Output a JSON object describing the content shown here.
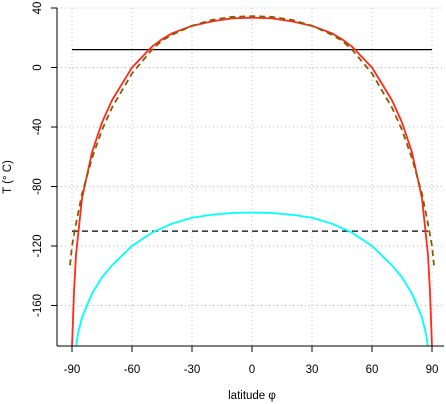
{
  "chart_data": {
    "type": "line",
    "xlabel": "latitude φ",
    "ylabel": "T (° C)",
    "xlim": [
      -90,
      90
    ],
    "ylim": [
      -188,
      40
    ],
    "x_ticks": [
      -90,
      -60,
      -30,
      0,
      30,
      60,
      90
    ],
    "y_ticks": [
      40,
      0,
      -40,
      -80,
      -120,
      -160
    ],
    "grid": true,
    "legend": "none",
    "series": [
      {
        "style": "solid",
        "color": "#000000",
        "x": [
          -90,
          90
        ],
        "y": [
          12,
          12
        ]
      },
      {
        "style": "dashed",
        "color": "#000000",
        "x": [
          -90,
          90
        ],
        "y": [
          -110,
          -110
        ]
      },
      {
        "style": "solid",
        "color": "#ff2a1a",
        "x": [
          -90,
          -89,
          -88,
          -85,
          -80,
          -75,
          -70,
          -60,
          -50,
          -45,
          -40,
          -30,
          -20,
          -10,
          0,
          10,
          20,
          30,
          40,
          45,
          50,
          60,
          70,
          75,
          80,
          85,
          88,
          89,
          90
        ],
        "y": [
          -188,
          -151,
          -126,
          -88,
          -57,
          -37,
          -22,
          0,
          14,
          19,
          23,
          28,
          31,
          33,
          33.5,
          33,
          31,
          28,
          23,
          19,
          14,
          0,
          -22,
          -37,
          -57,
          -88,
          -126,
          -151,
          -188
        ]
      },
      {
        "style": "dashed",
        "color": "#8c5a00",
        "x": [
          -91,
          -90,
          -88,
          -85,
          -80,
          -75,
          -70,
          -60,
          -50,
          -45,
          -40,
          -30,
          -20,
          -10,
          0,
          10,
          20,
          30,
          40,
          45,
          50,
          60,
          70,
          75,
          80,
          85,
          88,
          90,
          91
        ],
        "y": [
          -133,
          -120,
          -105,
          -85,
          -61,
          -42,
          -27,
          -4,
          12,
          18,
          22,
          28,
          32,
          34,
          34.5,
          34,
          32,
          28,
          22,
          18,
          12,
          -4,
          -27,
          -42,
          -61,
          -85,
          -105,
          -120,
          -133
        ]
      },
      {
        "style": "solid",
        "color": "#00ffff",
        "x": [
          -88,
          -87,
          -85,
          -80,
          -75,
          -70,
          -60,
          -50,
          -40,
          -30,
          -20,
          -10,
          0,
          10,
          20,
          30,
          40,
          50,
          60,
          70,
          75,
          80,
          85,
          87,
          88
        ],
        "y": [
          -188,
          -179,
          -168,
          -152,
          -141,
          -133,
          -120,
          -111,
          -105,
          -101,
          -99,
          -97.8,
          -97.5,
          -97.8,
          -99,
          -101,
          -105,
          -111,
          -120,
          -133,
          -141,
          -152,
          -168,
          -179,
          -188
        ]
      }
    ]
  }
}
